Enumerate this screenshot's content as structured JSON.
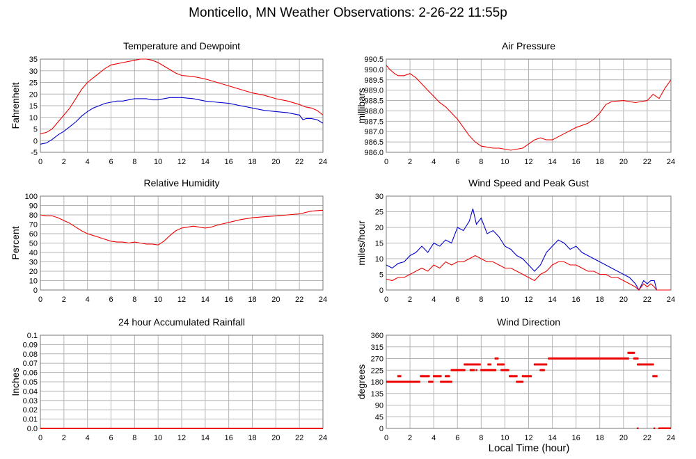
{
  "title": "Monticello, MN Weather Observations: 2-26-22 11:55p",
  "xaxis_label": "Local Time (hour)",
  "colors": {
    "red": "#ee0000",
    "blue": "#0000cc",
    "grid": "#b4b4b4",
    "frame": "#777777"
  },
  "chart_data": [
    {
      "id": "temperature",
      "type": "line",
      "title": "Temperature and Dewpoint",
      "ylabel": "Fahrenheit",
      "xlabel": "",
      "xlim": [
        0,
        24
      ],
      "ylim": [
        -5,
        35
      ],
      "xticks": [
        0,
        2,
        4,
        6,
        8,
        10,
        12,
        14,
        16,
        18,
        20,
        22,
        24
      ],
      "yticks": [
        -5,
        0,
        5,
        10,
        15,
        20,
        25,
        30,
        35
      ],
      "grid": true,
      "series": [
        {
          "color": "#ee0000",
          "x": [
            0,
            0.5,
            1,
            1.5,
            2,
            2.5,
            3,
            3.5,
            4,
            4.5,
            5,
            5.5,
            6,
            6.5,
            7,
            7.5,
            8,
            8.5,
            9,
            9.5,
            10,
            10.5,
            11,
            11.5,
            12,
            13,
            14,
            15,
            16,
            17,
            18,
            19,
            20,
            21,
            22,
            22.5,
            23,
            23.5,
            24
          ],
          "y": [
            3,
            3.5,
            5,
            8,
            11,
            14,
            18,
            22,
            25,
            27,
            29,
            31,
            32.5,
            33,
            33.5,
            34,
            34.5,
            35,
            35,
            34.5,
            33.5,
            32,
            30.5,
            29,
            28,
            27.5,
            26.5,
            25,
            23.5,
            22,
            20.5,
            19.5,
            18,
            17,
            15.5,
            14.5,
            14,
            13,
            11
          ]
        },
        {
          "color": "#0000cc",
          "x": [
            0,
            0.5,
            1,
            1.5,
            2,
            2.5,
            3,
            3.5,
            4,
            4.5,
            5,
            5.5,
            6,
            6.5,
            7,
            7.5,
            8,
            8.5,
            9,
            9.5,
            10,
            10.5,
            11,
            11.5,
            12,
            13,
            14,
            15,
            16,
            17,
            18,
            19,
            20,
            21,
            22,
            22.3,
            22.6,
            23,
            23.5,
            24
          ],
          "y": [
            -1.5,
            -1,
            0.5,
            2.5,
            4,
            6,
            8,
            10.5,
            12.5,
            14,
            15,
            16,
            16.5,
            17,
            17,
            17.5,
            18,
            18,
            18,
            17.5,
            17.5,
            18,
            18.5,
            18.5,
            18.5,
            18,
            17,
            16.5,
            16,
            15,
            14,
            13,
            12.5,
            12,
            11,
            9,
            9.5,
            9.5,
            9,
            7.5
          ]
        }
      ]
    },
    {
      "id": "pressure",
      "type": "line",
      "title": "Air Pressure",
      "ylabel": "millibars",
      "xlabel": "",
      "xlim": [
        0,
        24
      ],
      "ylim": [
        986.0,
        990.5
      ],
      "xticks": [
        0,
        2,
        4,
        6,
        8,
        10,
        12,
        14,
        16,
        18,
        20,
        22,
        24
      ],
      "yticks": [
        "986.0",
        "986.5",
        "987.0",
        "987.5",
        "988.0",
        "988.5",
        "989.0",
        "989.5",
        "990.0",
        "990.5"
      ],
      "grid": true,
      "series": [
        {
          "color": "#ee0000",
          "x": [
            0,
            0.3,
            0.7,
            1,
            1.5,
            2,
            2.5,
            3,
            3.5,
            4,
            4.5,
            5,
            5.5,
            6,
            6.5,
            7,
            7.5,
            8,
            8.5,
            9,
            9.5,
            10,
            10.5,
            11,
            11.5,
            12,
            12.5,
            13,
            13.5,
            14,
            15,
            16,
            17,
            17.5,
            18,
            18.5,
            19,
            20,
            21,
            22,
            22.5,
            23,
            23.5,
            24
          ],
          "y": [
            990.2,
            990.0,
            989.8,
            989.7,
            989.7,
            989.8,
            989.6,
            989.3,
            989.0,
            988.7,
            988.4,
            988.2,
            987.9,
            987.6,
            987.2,
            986.8,
            986.5,
            986.3,
            986.25,
            986.2,
            986.2,
            986.15,
            986.1,
            986.15,
            986.2,
            986.4,
            986.6,
            986.7,
            986.6,
            986.6,
            986.9,
            987.2,
            987.4,
            987.6,
            987.9,
            988.3,
            988.45,
            988.5,
            988.4,
            988.5,
            988.8,
            988.6,
            989.1,
            989.5
          ]
        }
      ]
    },
    {
      "id": "humidity",
      "type": "line",
      "title": "Relative Humidity",
      "ylabel": "Percent",
      "xlabel": "",
      "xlim": [
        0,
        24
      ],
      "ylim": [
        0,
        100
      ],
      "xticks": [
        0,
        2,
        4,
        6,
        8,
        10,
        12,
        14,
        16,
        18,
        20,
        22,
        24
      ],
      "yticks": [
        0,
        10,
        20,
        30,
        40,
        50,
        60,
        70,
        80,
        90,
        100
      ],
      "grid": true,
      "series": [
        {
          "color": "#ee0000",
          "x": [
            0,
            0.5,
            1,
            1.5,
            2,
            2.5,
            3,
            3.5,
            4,
            4.5,
            5,
            5.5,
            6,
            6.5,
            7,
            7.5,
            8,
            8.5,
            9,
            9.5,
            10,
            10.5,
            11,
            11.5,
            12,
            13,
            14,
            14.5,
            15,
            16,
            17,
            18,
            19,
            20,
            21,
            22,
            23,
            24
          ],
          "y": [
            80,
            79,
            79,
            77,
            74,
            71,
            67,
            63,
            60,
            58,
            56,
            54,
            52,
            51,
            51,
            50,
            51,
            50,
            49,
            49,
            48,
            52,
            58,
            63,
            66,
            68,
            66,
            67,
            69,
            72,
            75,
            77,
            78,
            79,
            80,
            81,
            84,
            85
          ]
        }
      ]
    },
    {
      "id": "wind",
      "type": "line",
      "title": "Wind Speed and Peak Gust",
      "ylabel": "miles/hour",
      "xlabel": "",
      "xlim": [
        0,
        24
      ],
      "ylim": [
        0,
        30
      ],
      "xticks": [
        0,
        2,
        4,
        6,
        8,
        10,
        12,
        14,
        16,
        18,
        20,
        22,
        24
      ],
      "yticks": [
        0,
        5,
        10,
        15,
        20,
        25,
        30
      ],
      "grid": true,
      "series": [
        {
          "color": "#0000cc",
          "x": [
            0,
            0.5,
            1,
            1.5,
            2,
            2.5,
            3,
            3.5,
            4,
            4.5,
            5,
            5.5,
            6,
            6.5,
            7,
            7.3,
            7.6,
            8,
            8.5,
            9,
            9.5,
            10,
            10.5,
            11,
            11.5,
            12,
            12.5,
            13,
            13.5,
            14,
            14.5,
            15,
            15.5,
            16,
            16.5,
            17,
            17.5,
            18,
            18.5,
            19,
            19.5,
            20,
            20.5,
            21,
            21.3,
            21.7,
            22,
            22.3,
            22.6,
            22.8,
            23,
            23.5,
            24
          ],
          "y": [
            8,
            7,
            8.5,
            9,
            11,
            12,
            14,
            12,
            15,
            14,
            16,
            15,
            20,
            19,
            22,
            26,
            21,
            23,
            18,
            19,
            17,
            14,
            13,
            11,
            10,
            8,
            6,
            8,
            12,
            14,
            16,
            15,
            13,
            14,
            12,
            11,
            10,
            9,
            8,
            7,
            6,
            5,
            4,
            2,
            0,
            3,
            2,
            3,
            3,
            0,
            0,
            0,
            0
          ]
        },
        {
          "color": "#ee0000",
          "x": [
            0,
            0.5,
            1,
            1.5,
            2,
            2.5,
            3,
            3.5,
            4,
            4.5,
            5,
            5.5,
            6,
            6.5,
            7,
            7.5,
            8,
            8.5,
            9,
            9.5,
            10,
            10.5,
            11,
            11.5,
            12,
            12.5,
            13,
            13.5,
            14,
            14.5,
            15,
            15.5,
            16,
            16.5,
            17,
            17.5,
            18,
            18.5,
            19,
            19.5,
            20,
            20.5,
            21,
            21.3,
            21.7,
            22,
            22.3,
            22.6,
            22.8,
            23,
            23.5,
            24
          ],
          "y": [
            3.5,
            3,
            4,
            4,
            5,
            6,
            7,
            6,
            8,
            7,
            9,
            8,
            9,
            9,
            10,
            11,
            10,
            9,
            9,
            8,
            7,
            7,
            6,
            5,
            4,
            3,
            5,
            6,
            8,
            9,
            9,
            8,
            8,
            7,
            6,
            6,
            5,
            5,
            4,
            4,
            3,
            2,
            1,
            0,
            2,
            1,
            2,
            1,
            0,
            0,
            0,
            0
          ]
        }
      ]
    },
    {
      "id": "rainfall",
      "type": "line",
      "title": "24 hour Accumulated Rainfall",
      "ylabel": "Inches",
      "xlabel": "",
      "xlim": [
        0,
        24
      ],
      "ylim": [
        0,
        0.1
      ],
      "xticks": [
        0,
        2,
        4,
        6,
        8,
        10,
        12,
        14,
        16,
        18,
        20,
        22,
        24
      ],
      "yticks": [
        "0.0",
        "0.01",
        "0.02",
        "0.03",
        "0.04",
        "0.05",
        "0.06",
        "0.07",
        "0.08",
        "0.09",
        "0.1"
      ],
      "grid": true,
      "series": [
        {
          "color": "#ee0000",
          "x": [
            0,
            24
          ],
          "y": [
            0,
            0
          ]
        }
      ]
    },
    {
      "id": "direction",
      "type": "scatter",
      "title": "Wind Direction",
      "ylabel": "degrees",
      "xlabel": "Local Time (hour)",
      "xlim": [
        0,
        24
      ],
      "ylim": [
        0,
        360
      ],
      "xticks": [
        0,
        2,
        4,
        6,
        8,
        10,
        12,
        14,
        16,
        18,
        20,
        22,
        24
      ],
      "yticks": [
        0,
        45,
        90,
        135,
        180,
        225,
        270,
        315,
        360
      ],
      "grid": true,
      "series": [
        {
          "color": "#ee0000",
          "segments": [
            [
              0,
              2.3,
              180
            ],
            [
              1.0,
              1.2,
              202
            ],
            [
              2.4,
              2.8,
              180
            ],
            [
              2.9,
              3.6,
              202
            ],
            [
              3.6,
              3.9,
              180
            ],
            [
              4.0,
              4.6,
              202
            ],
            [
              4.6,
              5.5,
              180
            ],
            [
              5.0,
              5.3,
              202
            ],
            [
              5.5,
              6.6,
              225
            ],
            [
              6.6,
              7.9,
              247
            ],
            [
              7.1,
              7.4,
              225
            ],
            [
              8.0,
              9.2,
              225
            ],
            [
              8.6,
              8.8,
              247
            ],
            [
              9.2,
              9.4,
              270
            ],
            [
              9.4,
              9.9,
              247
            ],
            [
              9.7,
              10.3,
              225
            ],
            [
              10.4,
              11.0,
              202
            ],
            [
              11.0,
              11.5,
              180
            ],
            [
              11.5,
              12.2,
              202
            ],
            [
              12.5,
              13.5,
              247
            ],
            [
              13.0,
              13.3,
              225
            ],
            [
              13.7,
              20.4,
              270
            ],
            [
              20.4,
              20.9,
              292
            ],
            [
              20.9,
              21.2,
              270
            ],
            [
              21.2,
              22.5,
              247
            ],
            [
              22.5,
              22.8,
              202
            ],
            [
              23.0,
              24,
              0
            ]
          ],
          "points": [
            [
              21.2,
              0
            ],
            [
              22.6,
              0
            ],
            [
              7.6,
              225
            ],
            [
              11.3,
              180
            ]
          ]
        }
      ]
    }
  ]
}
